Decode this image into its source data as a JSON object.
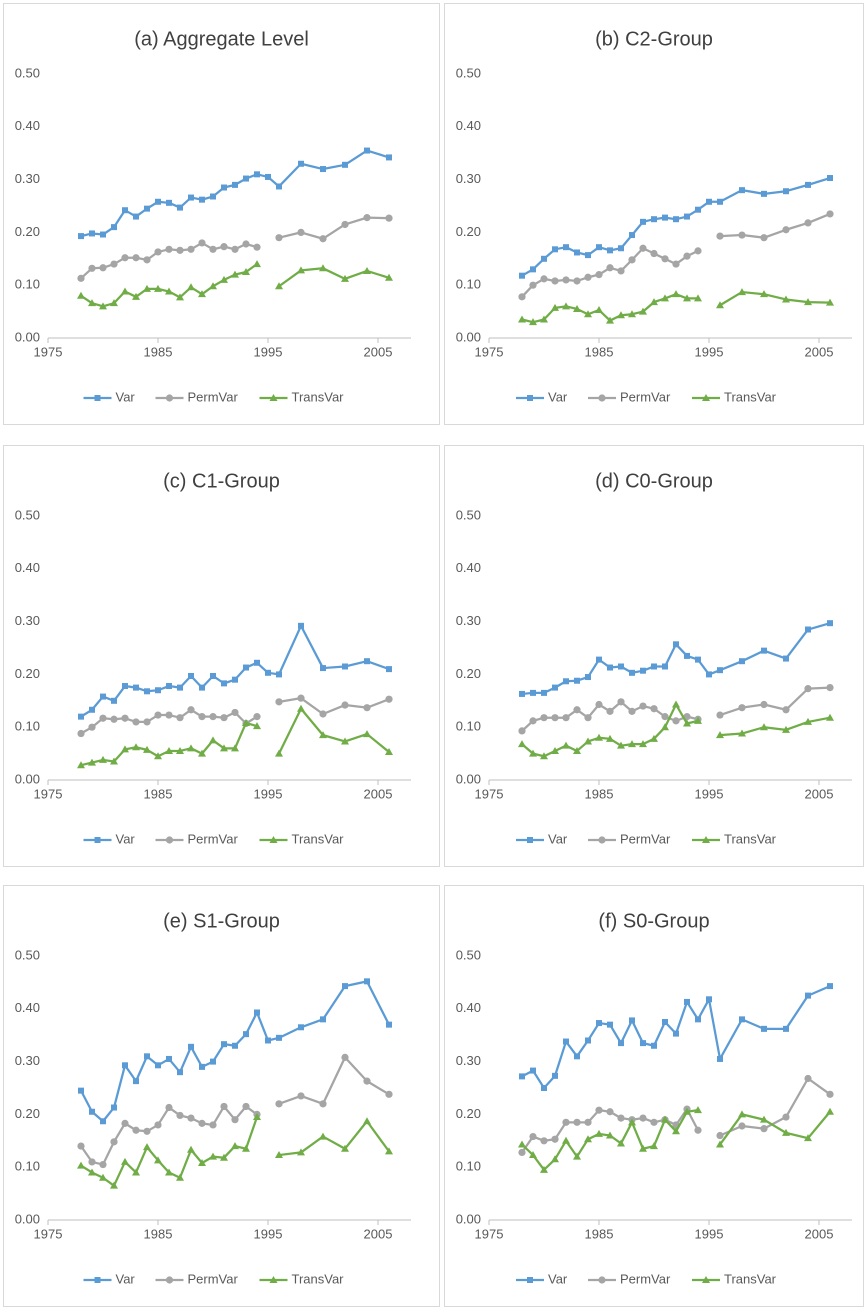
{
  "chart_data": [
    {
      "type": "line",
      "title": "(a) Aggregate Level",
      "x": [
        1978,
        1979,
        1980,
        1981,
        1982,
        1983,
        1984,
        1985,
        1986,
        1987,
        1988,
        1989,
        1990,
        1991,
        1992,
        1993,
        1994,
        1995,
        1996,
        1998,
        2000,
        2002,
        2004,
        2006
      ],
      "series": [
        {
          "name": "Var",
          "color": "#5b9bd5",
          "marker": "square",
          "values": [
            0.193,
            0.198,
            0.196,
            0.21,
            0.242,
            0.23,
            0.245,
            0.258,
            0.256,
            0.247,
            0.266,
            0.262,
            0.268,
            0.285,
            0.29,
            0.302,
            0.31,
            0.305,
            0.287,
            0.33,
            0.32,
            0.328,
            0.355,
            0.342
          ]
        },
        {
          "name": "PermVar",
          "color": "#a5a5a5",
          "marker": "circle",
          "values": [
            0.113,
            0.132,
            0.133,
            0.14,
            0.152,
            0.152,
            0.148,
            0.163,
            0.168,
            0.166,
            0.168,
            0.18,
            0.168,
            0.173,
            0.168,
            0.178,
            0.172,
            null,
            0.19,
            0.2,
            0.188,
            0.215,
            0.228,
            0.227
          ]
        },
        {
          "name": "TransVar",
          "color": "#70ad47",
          "marker": "triangle",
          "values": [
            0.08,
            0.066,
            0.06,
            0.066,
            0.088,
            0.078,
            0.093,
            0.093,
            0.088,
            0.077,
            0.096,
            0.083,
            0.098,
            0.11,
            0.12,
            0.125,
            0.14,
            null,
            0.098,
            0.128,
            0.132,
            0.112,
            0.127,
            0.114
          ]
        }
      ],
      "xlim": [
        1975,
        2008
      ],
      "xticks": [
        1975,
        1985,
        1995,
        2005
      ],
      "ylim": [
        0,
        0.5
      ],
      "yticks": [
        {
          "value": 0,
          "label": "0.00"
        },
        {
          "value": 0.1,
          "label": "0.10"
        },
        {
          "value": 0.2,
          "label": "0.20"
        },
        {
          "value": 0.3,
          "label": "0.30"
        },
        {
          "value": 0.4,
          "label": "0.40"
        },
        {
          "value": 0.5,
          "label": "0.50"
        }
      ],
      "grid": false,
      "legend": "bottom"
    },
    {
      "type": "line",
      "title": "(b) C2-Group",
      "x": [
        1978,
        1979,
        1980,
        1981,
        1982,
        1983,
        1984,
        1985,
        1986,
        1987,
        1988,
        1989,
        1990,
        1991,
        1992,
        1993,
        1994,
        1995,
        1996,
        1998,
        2000,
        2002,
        2004,
        2006
      ],
      "series": [
        {
          "name": "Var",
          "color": "#5b9bd5",
          "marker": "square",
          "values": [
            0.118,
            0.13,
            0.15,
            0.168,
            0.172,
            0.162,
            0.157,
            0.172,
            0.166,
            0.17,
            0.195,
            0.22,
            0.225,
            0.228,
            0.225,
            0.23,
            0.243,
            0.258,
            0.258,
            0.28,
            0.273,
            0.278,
            0.29,
            0.303
          ]
        },
        {
          "name": "PermVar",
          "color": "#a5a5a5",
          "marker": "circle",
          "values": [
            0.078,
            0.1,
            0.112,
            0.108,
            0.11,
            0.108,
            0.115,
            0.12,
            0.133,
            0.127,
            0.148,
            0.17,
            0.16,
            0.15,
            0.14,
            0.155,
            0.165,
            null,
            0.193,
            0.195,
            0.19,
            0.205,
            0.218,
            0.235
          ]
        },
        {
          "name": "TransVar",
          "color": "#70ad47",
          "marker": "triangle",
          "values": [
            0.035,
            0.03,
            0.035,
            0.057,
            0.06,
            0.055,
            0.045,
            0.053,
            0.033,
            0.043,
            0.045,
            0.05,
            0.068,
            0.075,
            0.083,
            0.075,
            0.075,
            null,
            0.062,
            0.087,
            0.083,
            0.073,
            0.068,
            0.067
          ]
        }
      ],
      "xlim": [
        1975,
        2008
      ],
      "xticks": [
        1975,
        1985,
        1995,
        2005
      ],
      "ylim": [
        0,
        0.5
      ],
      "yticks": [
        {
          "value": 0,
          "label": "0.00"
        },
        {
          "value": 0.1,
          "label": "0.10"
        },
        {
          "value": 0.2,
          "label": "0.20"
        },
        {
          "value": 0.3,
          "label": "0.30"
        },
        {
          "value": 0.4,
          "label": "0.40"
        },
        {
          "value": 0.5,
          "label": "0.50"
        }
      ],
      "grid": false,
      "legend": "bottom"
    },
    {
      "type": "line",
      "title": "(c) C1-Group",
      "x": [
        1978,
        1979,
        1980,
        1981,
        1982,
        1983,
        1984,
        1985,
        1986,
        1987,
        1988,
        1989,
        1990,
        1991,
        1992,
        1993,
        1994,
        1995,
        1996,
        1998,
        2000,
        2002,
        2004,
        2006
      ],
      "series": [
        {
          "name": "Var",
          "color": "#5b9bd5",
          "marker": "square",
          "values": [
            0.12,
            0.133,
            0.158,
            0.15,
            0.178,
            0.175,
            0.168,
            0.17,
            0.178,
            0.175,
            0.197,
            0.175,
            0.197,
            0.183,
            0.19,
            0.213,
            0.222,
            0.203,
            0.2,
            0.292,
            0.212,
            0.215,
            0.225,
            0.21
          ]
        },
        {
          "name": "PermVar",
          "color": "#a5a5a5",
          "marker": "circle",
          "values": [
            0.088,
            0.1,
            0.117,
            0.115,
            0.117,
            0.11,
            0.11,
            0.123,
            0.123,
            0.118,
            0.133,
            0.12,
            0.12,
            0.118,
            0.128,
            0.107,
            0.12,
            null,
            0.148,
            0.155,
            0.125,
            0.142,
            0.137,
            0.153
          ]
        },
        {
          "name": "TransVar",
          "color": "#70ad47",
          "marker": "triangle",
          "values": [
            0.028,
            0.033,
            0.038,
            0.035,
            0.058,
            0.062,
            0.057,
            0.045,
            0.055,
            0.055,
            0.06,
            0.05,
            0.075,
            0.06,
            0.06,
            0.108,
            0.102,
            null,
            0.05,
            0.135,
            0.085,
            0.073,
            0.087,
            0.053
          ]
        }
      ],
      "xlim": [
        1975,
        2008
      ],
      "xticks": [
        1975,
        1985,
        1995,
        2005
      ],
      "ylim": [
        0,
        0.5
      ],
      "yticks": [
        {
          "value": 0,
          "label": "0.00"
        },
        {
          "value": 0.1,
          "label": "0.10"
        },
        {
          "value": 0.2,
          "label": "0.20"
        },
        {
          "value": 0.3,
          "label": "0.30"
        },
        {
          "value": 0.4,
          "label": "0.40"
        },
        {
          "value": 0.5,
          "label": "0.50"
        }
      ],
      "grid": false,
      "legend": "bottom"
    },
    {
      "type": "line",
      "title": "(d) C0-Group",
      "x": [
        1978,
        1979,
        1980,
        1981,
        1982,
        1983,
        1984,
        1985,
        1986,
        1987,
        1988,
        1989,
        1990,
        1991,
        1992,
        1993,
        1994,
        1995,
        1996,
        1998,
        2000,
        2002,
        2004,
        2006
      ],
      "series": [
        {
          "name": "Var",
          "color": "#5b9bd5",
          "marker": "square",
          "values": [
            0.163,
            0.165,
            0.165,
            0.175,
            0.187,
            0.188,
            0.195,
            0.228,
            0.213,
            0.215,
            0.203,
            0.207,
            0.215,
            0.215,
            0.257,
            0.235,
            0.228,
            0.2,
            0.208,
            0.225,
            0.245,
            0.23,
            0.285,
            0.297
          ]
        },
        {
          "name": "PermVar",
          "color": "#a5a5a5",
          "marker": "circle",
          "values": [
            0.093,
            0.112,
            0.118,
            0.118,
            0.118,
            0.133,
            0.118,
            0.143,
            0.13,
            0.148,
            0.13,
            0.14,
            0.135,
            0.12,
            0.112,
            0.12,
            0.115,
            null,
            0.123,
            0.137,
            0.143,
            0.133,
            0.173,
            0.175
          ]
        },
        {
          "name": "TransVar",
          "color": "#70ad47",
          "marker": "triangle",
          "values": [
            0.068,
            0.05,
            0.045,
            0.055,
            0.065,
            0.055,
            0.073,
            0.08,
            0.078,
            0.065,
            0.068,
            0.068,
            0.078,
            0.1,
            0.143,
            0.107,
            0.112,
            null,
            0.085,
            0.088,
            0.1,
            0.095,
            0.11,
            0.118
          ]
        }
      ],
      "xlim": [
        1975,
        2008
      ],
      "xticks": [
        1975,
        1985,
        1995,
        2005
      ],
      "ylim": [
        0,
        0.5
      ],
      "yticks": [
        {
          "value": 0,
          "label": "0.00"
        },
        {
          "value": 0.1,
          "label": "0.10"
        },
        {
          "value": 0.2,
          "label": "0.20"
        },
        {
          "value": 0.3,
          "label": "0.30"
        },
        {
          "value": 0.4,
          "label": "0.40"
        },
        {
          "value": 0.5,
          "label": "0.50"
        }
      ],
      "grid": false,
      "legend": "bottom"
    },
    {
      "type": "line",
      "title": "(e) S1-Group",
      "x": [
        1978,
        1979,
        1980,
        1981,
        1982,
        1983,
        1984,
        1985,
        1986,
        1987,
        1988,
        1989,
        1990,
        1991,
        1992,
        1993,
        1994,
        1995,
        1996,
        1998,
        2000,
        2002,
        2004,
        2006
      ],
      "series": [
        {
          "name": "Var",
          "color": "#5b9bd5",
          "marker": "square",
          "values": [
            0.245,
            0.205,
            0.187,
            0.213,
            0.293,
            0.263,
            0.31,
            0.293,
            0.305,
            0.28,
            0.328,
            0.29,
            0.3,
            0.333,
            0.33,
            0.352,
            0.393,
            0.34,
            0.345,
            0.365,
            0.38,
            0.443,
            0.452,
            0.37
          ]
        },
        {
          "name": "PermVar",
          "color": "#a5a5a5",
          "marker": "circle",
          "values": [
            0.14,
            0.11,
            0.105,
            0.148,
            0.183,
            0.17,
            0.168,
            0.18,
            0.213,
            0.198,
            0.193,
            0.183,
            0.18,
            0.215,
            0.19,
            0.215,
            0.2,
            null,
            0.22,
            0.235,
            0.22,
            0.308,
            0.263,
            0.238
          ]
        },
        {
          "name": "TransVar",
          "color": "#70ad47",
          "marker": "triangle",
          "values": [
            0.103,
            0.09,
            0.08,
            0.065,
            0.11,
            0.09,
            0.138,
            0.113,
            0.09,
            0.08,
            0.133,
            0.108,
            0.12,
            0.118,
            0.14,
            0.135,
            0.195,
            null,
            0.123,
            0.128,
            0.158,
            0.135,
            0.187,
            0.13
          ]
        }
      ],
      "xlim": [
        1975,
        2008
      ],
      "xticks": [
        1975,
        1985,
        1995,
        2005
      ],
      "ylim": [
        0,
        0.5
      ],
      "yticks": [
        {
          "value": 0,
          "label": "0.00"
        },
        {
          "value": 0.1,
          "label": "0.10"
        },
        {
          "value": 0.2,
          "label": "0.20"
        },
        {
          "value": 0.3,
          "label": "0.30"
        },
        {
          "value": 0.4,
          "label": "0.40"
        },
        {
          "value": 0.5,
          "label": "0.50"
        }
      ],
      "grid": false,
      "legend": "bottom"
    },
    {
      "type": "line",
      "title": "(f) S0-Group",
      "x": [
        1978,
        1979,
        1980,
        1981,
        1982,
        1983,
        1984,
        1985,
        1986,
        1987,
        1988,
        1989,
        1990,
        1991,
        1992,
        1993,
        1994,
        1995,
        1996,
        1998,
        2000,
        2002,
        2004,
        2006
      ],
      "series": [
        {
          "name": "Var",
          "color": "#5b9bd5",
          "marker": "square",
          "values": [
            0.272,
            0.283,
            0.25,
            0.273,
            0.338,
            0.31,
            0.34,
            0.373,
            0.37,
            0.335,
            0.378,
            0.335,
            0.33,
            0.375,
            0.353,
            0.413,
            0.38,
            0.418,
            0.305,
            0.38,
            0.362,
            0.362,
            0.425,
            0.443
          ]
        },
        {
          "name": "PermVar",
          "color": "#a5a5a5",
          "marker": "circle",
          "values": [
            0.128,
            0.158,
            0.15,
            0.153,
            0.185,
            0.185,
            0.185,
            0.208,
            0.205,
            0.193,
            0.19,
            0.193,
            0.185,
            0.19,
            0.18,
            0.21,
            0.17,
            null,
            0.16,
            0.178,
            0.173,
            0.195,
            0.268,
            0.238
          ]
        },
        {
          "name": "TransVar",
          "color": "#70ad47",
          "marker": "triangle",
          "values": [
            0.143,
            0.123,
            0.095,
            0.115,
            0.15,
            0.12,
            0.153,
            0.163,
            0.16,
            0.145,
            0.185,
            0.135,
            0.14,
            0.19,
            0.168,
            0.205,
            0.208,
            null,
            0.143,
            0.2,
            0.19,
            0.165,
            0.155,
            0.205
          ]
        }
      ],
      "xlim": [
        1975,
        2008
      ],
      "xticks": [
        1975,
        1985,
        1995,
        2005
      ],
      "ylim": [
        0,
        0.5
      ],
      "yticks": [
        {
          "value": 0,
          "label": "0.00"
        },
        {
          "value": 0.1,
          "label": "0.10"
        },
        {
          "value": 0.2,
          "label": "0.20"
        },
        {
          "value": 0.3,
          "label": "0.30"
        },
        {
          "value": 0.4,
          "label": "0.40"
        },
        {
          "value": 0.5,
          "label": "0.50"
        }
      ],
      "grid": false,
      "legend": "bottom"
    }
  ]
}
